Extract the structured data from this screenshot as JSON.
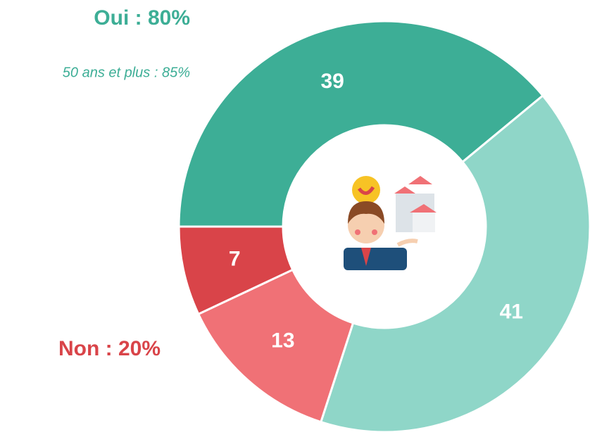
{
  "chart_data": {
    "type": "donut",
    "values": [
      39,
      41,
      13,
      7
    ],
    "colors": [
      "#3dae96",
      "#8fd6c8",
      "#f07176",
      "#d94449"
    ],
    "annotations": [
      {
        "text": "Oui : 80%",
        "color": "#3dae96"
      },
      {
        "text": "50 ans et plus : 85%",
        "color": "#3dae96"
      },
      {
        "text": "Non : 20%",
        "color": "#d94449"
      }
    ]
  }
}
